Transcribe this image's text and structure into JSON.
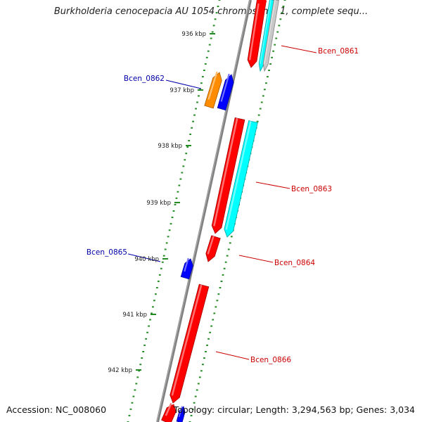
{
  "title": "Burkholderia cenocepacia AU 1054 chromosome 1, complete sequ...",
  "footer": {
    "accession": "Accession: NC_008060",
    "topology": "Topology: circular; Length: 3,294,563 bp; Genes: 3,034"
  },
  "scale": {
    "ticks": [
      "936 kbp",
      "937 kbp",
      "938 kbp",
      "939 kbp",
      "940 kbp",
      "941 kbp",
      "942 kbp"
    ]
  },
  "colors": {
    "backbone": "#808080",
    "cds_red": "#ff0000",
    "cds_cyan": "#00ffff",
    "cds_blue": "#0000ff",
    "cds_orange": "#ff8c00",
    "cds_gray": "#c8c8c8",
    "ticks": "#228b22",
    "label_red": "#cc0000",
    "label_blue": "#0000aa"
  },
  "genes": [
    {
      "name": "Bcen_0861",
      "strand": "forward",
      "label_color": "red"
    },
    {
      "name": "Bcen_0862",
      "strand": "reverse",
      "label_color": "blue"
    },
    {
      "name": "Bcen_0863",
      "strand": "forward",
      "label_color": "red"
    },
    {
      "name": "Bcen_0864",
      "strand": "forward",
      "label_color": "red"
    },
    {
      "name": "Bcen_0865",
      "strand": "reverse",
      "label_color": "blue"
    },
    {
      "name": "Bcen_0866",
      "strand": "forward",
      "label_color": "red"
    }
  ]
}
